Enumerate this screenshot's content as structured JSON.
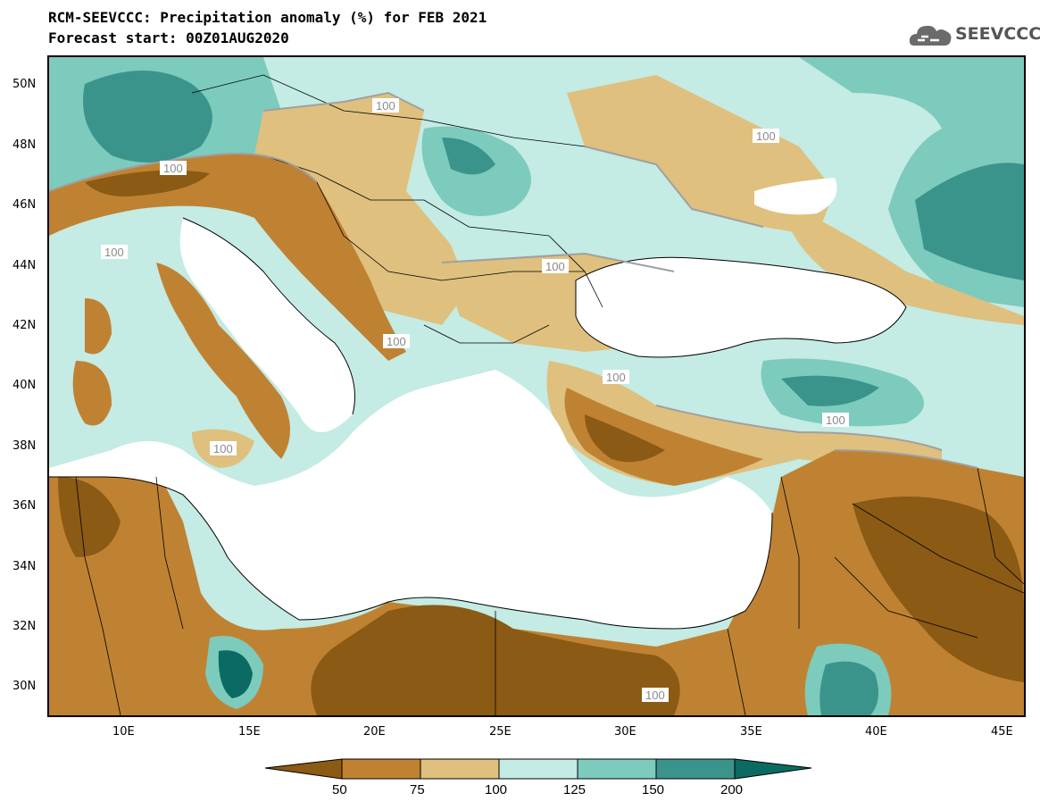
{
  "header": {
    "title": "RCM-SEEVCCC: Precipitation anomaly (%) for FEB 2021",
    "subtitle": "Forecast start: 00Z01AUG2020"
  },
  "logo": {
    "text": "SEEVCCC",
    "icon": "cloud-icon"
  },
  "map": {
    "variable": "Precipitation anomaly (%)",
    "lat_ticks": [
      "50N",
      "48N",
      "46N",
      "44N",
      "42N",
      "40N",
      "38N",
      "36N",
      "34N",
      "32N",
      "30N"
    ],
    "lon_ticks": [
      "10E",
      "15E",
      "20E",
      "25E",
      "30E",
      "35E",
      "40E",
      "45E"
    ],
    "contour_labels": [
      "100",
      "100",
      "100",
      "100",
      "100",
      "100",
      "100",
      "100",
      "100",
      "100"
    ]
  },
  "colorbar": {
    "levels": [
      "50",
      "75",
      "100",
      "125",
      "150",
      "200"
    ],
    "colors": [
      "#8b5a14",
      "#bf8232",
      "#dfc07e",
      "#c4ebe4",
      "#7ccbbd",
      "#3b948c",
      "#0b6b62"
    ]
  }
}
